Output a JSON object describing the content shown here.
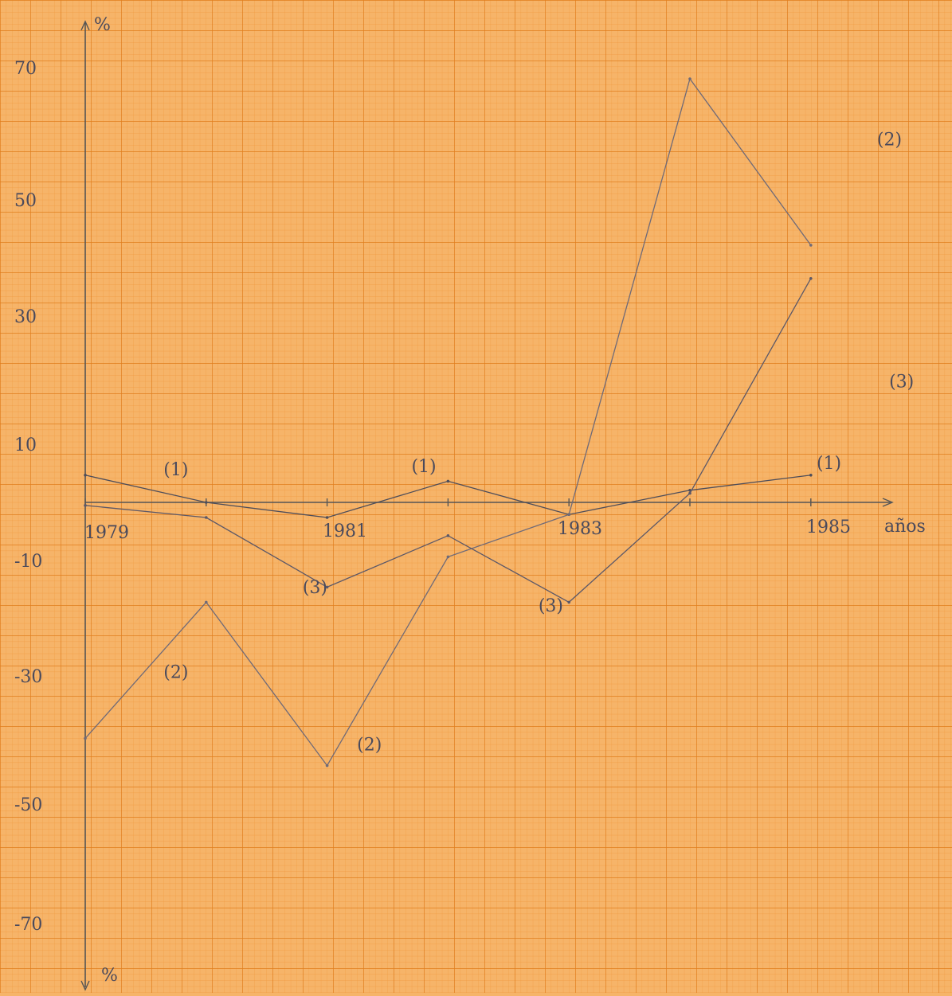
{
  "chart_data": {
    "type": "line",
    "x": [
      1979,
      1980,
      1981,
      1982,
      1983,
      1984,
      1985
    ],
    "x_tick_labels": [
      {
        "x": 1979,
        "label": "1979"
      },
      {
        "x": 1981,
        "label": "1981"
      },
      {
        "x": 1983,
        "label": "1983"
      },
      {
        "x": 1985,
        "label": "1985"
      }
    ],
    "y_ticks": [
      70,
      50,
      30,
      10,
      -10,
      -30,
      -50,
      -70
    ],
    "y_tick_labels": [
      "70",
      "50",
      "30",
      "10",
      "-10",
      "-30",
      "-50",
      "-70"
    ],
    "xlim": [
      1979,
      1985.6
    ],
    "ylim": [
      -78,
      77
    ],
    "xlabel": "años",
    "ylabel_top": "%",
    "ylabel_bottom": "%",
    "grid": true,
    "series": [
      {
        "name": "(1)",
        "values": [
          4.5,
          0,
          -2.5,
          3.5,
          -2.0,
          2.0,
          4.5
        ],
        "labels": [
          {
            "x": 1979.75,
            "y": 4.5,
            "text": "(1)"
          },
          {
            "x": 1981.8,
            "y": 5.0,
            "text": "(1)"
          },
          {
            "x": 1985.15,
            "y": 5.5,
            "text": "(1)"
          }
        ]
      },
      {
        "name": "(2)",
        "values": [
          -39.0,
          -16.5,
          -43.5,
          -9.0,
          -2.0,
          70.0,
          42.5
        ],
        "labels": [
          {
            "x": 1985.65,
            "y": 59.0,
            "text": "(2)"
          },
          {
            "x": 1979.75,
            "y": -29.0,
            "text": "(2)"
          },
          {
            "x": 1981.35,
            "y": -41.0,
            "text": "(2)"
          }
        ]
      },
      {
        "name": "(3)",
        "values": [
          -0.5,
          -2.5,
          -14.0,
          -5.5,
          -16.5,
          1.5,
          37.0
        ],
        "labels": [
          {
            "x": 1980.9,
            "y": -15.0,
            "text": "(3)"
          },
          {
            "x": 1982.85,
            "y": -18.0,
            "text": "(3)"
          },
          {
            "x": 1985.75,
            "y": 19.0,
            "text": "(3)"
          }
        ]
      }
    ]
  }
}
